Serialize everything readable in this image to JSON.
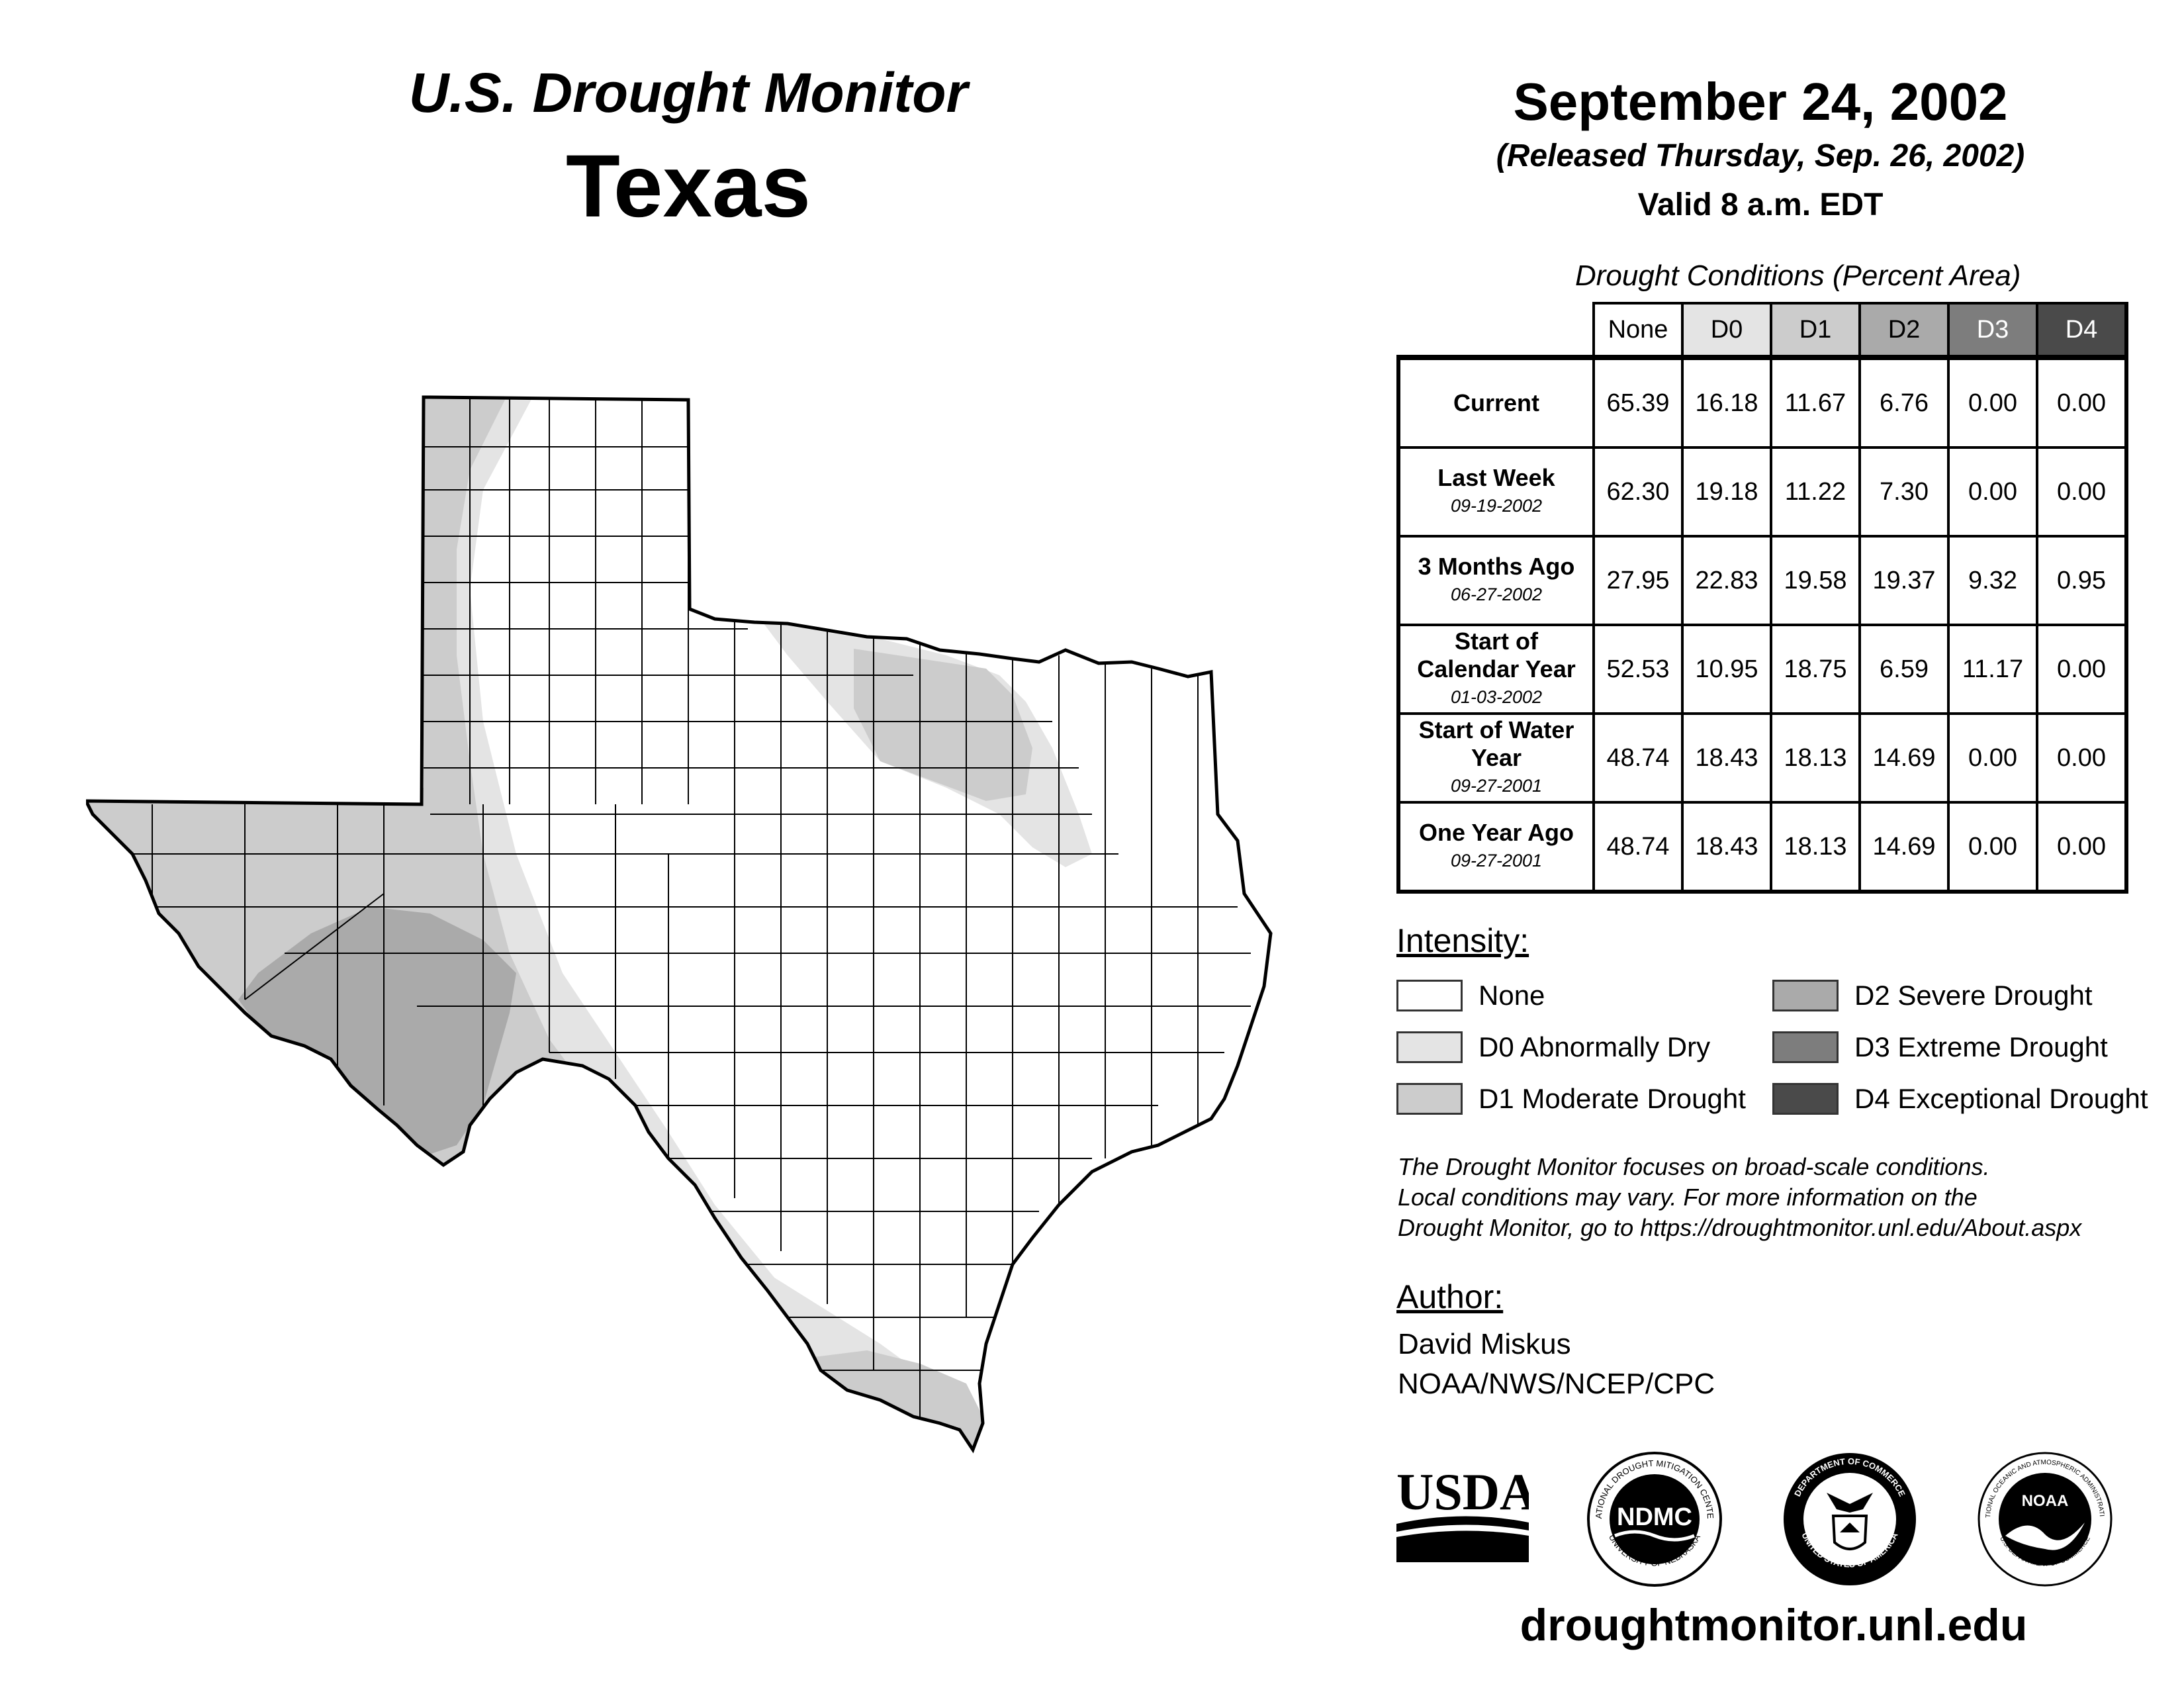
{
  "header": {
    "subtitle": "U.S. Drought Monitor",
    "state": "Texas",
    "date": "September 24, 2002",
    "released": "(Released Thursday, Sep. 26, 2002)",
    "valid": "Valid 8 a.m. EDT"
  },
  "table": {
    "caption": "Drought Conditions (Percent Area)",
    "columns": [
      "None",
      "D0",
      "D1",
      "D2",
      "D3",
      "D4"
    ],
    "column_colors": [
      "#ffffff",
      "#e4e4e4",
      "#cccccc",
      "#aaaaaa",
      "#7d7d7d",
      "#4a4a4a"
    ],
    "column_text_colors": [
      "#000000",
      "#000000",
      "#000000",
      "#000000",
      "#ffffff",
      "#ffffff"
    ],
    "rows": [
      {
        "label": "Current",
        "date": "",
        "values": [
          "65.39",
          "16.18",
          "11.67",
          "6.76",
          "0.00",
          "0.00"
        ]
      },
      {
        "label": "Last Week",
        "date": "09-19-2002",
        "values": [
          "62.30",
          "19.18",
          "11.22",
          "7.30",
          "0.00",
          "0.00"
        ]
      },
      {
        "label": "3 Months Ago",
        "date": "06-27-2002",
        "values": [
          "27.95",
          "22.83",
          "19.58",
          "19.37",
          "9.32",
          "0.95"
        ]
      },
      {
        "label": "Start of Calendar Year",
        "date": "01-03-2002",
        "values": [
          "52.53",
          "10.95",
          "18.75",
          "6.59",
          "11.17",
          "0.00"
        ]
      },
      {
        "label": "Start of Water Year",
        "date": "09-27-2001",
        "values": [
          "48.74",
          "18.43",
          "18.13",
          "14.69",
          "0.00",
          "0.00"
        ]
      },
      {
        "label": "One Year Ago",
        "date": "09-27-2001",
        "values": [
          "48.74",
          "18.43",
          "18.13",
          "14.69",
          "0.00",
          "0.00"
        ]
      }
    ]
  },
  "intensity": {
    "heading": "Intensity:",
    "items": [
      {
        "label": "None",
        "color": "#ffffff"
      },
      {
        "label": "D0 Abnormally Dry",
        "color": "#e4e4e4"
      },
      {
        "label": "D1 Moderate Drought",
        "color": "#cccccc"
      },
      {
        "label": "D2 Severe Drought",
        "color": "#aaaaaa"
      },
      {
        "label": "D3 Extreme Drought",
        "color": "#7d7d7d"
      },
      {
        "label": "D4 Exceptional Drought",
        "color": "#4a4a4a"
      }
    ]
  },
  "note": {
    "line1": "The Drought Monitor focuses on broad-scale conditions.",
    "line2": "Local conditions may vary. For more information on the",
    "line3": "Drought Monitor, go to https://droughtmonitor.unl.edu/About.aspx"
  },
  "author": {
    "heading": "Author:",
    "name": "David Miskus",
    "org": "NOAA/NWS/NCEP/CPC"
  },
  "logos": {
    "usda": "USDA",
    "ndmc": "NDMC",
    "ndmc_ring_top": "NATIONAL DROUGHT MITIGATION CENTER",
    "ndmc_ring_bottom": "UNIVERSITY OF NEBRASKA",
    "doc_ring_top": "DEPARTMENT OF COMMERCE",
    "doc_ring_bottom": "UNITED STATES OF AMERICA",
    "noaa": "NOAA",
    "noaa_ring_top": "NATIONAL OCEANIC AND ATMOSPHERIC ADMINISTRATION",
    "noaa_ring_bottom": "U.S. DEPARTMENT OF COMMERCE"
  },
  "website": "droughtmonitor.unl.edu"
}
